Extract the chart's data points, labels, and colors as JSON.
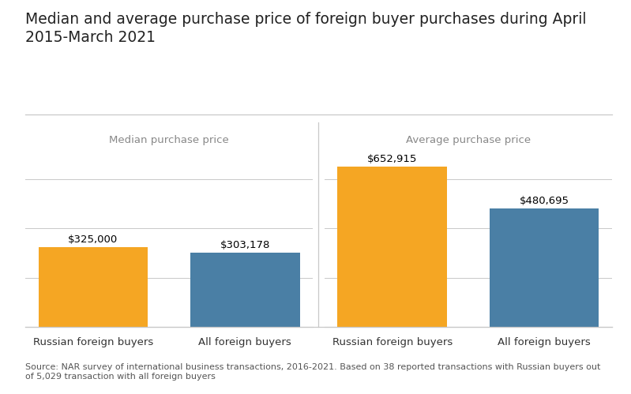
{
  "title": "Median and average purchase price of foreign buyer purchases during April\n2015-March 2021",
  "title_fontsize": 13.5,
  "subtitle_left": "Median purchase price",
  "subtitle_right": "Average purchase price",
  "subtitle_fontsize": 9.5,
  "categories": [
    "Russian foreign buyers",
    "All foreign buyers"
  ],
  "median_values": [
    325000,
    303178
  ],
  "average_values": [
    652915,
    480695
  ],
  "median_labels": [
    "$325,000",
    "$303,178"
  ],
  "average_labels": [
    "$652,915",
    "$480,695"
  ],
  "bar_colors": [
    "#F5A623",
    "#4A7FA5"
  ],
  "bar_width": 0.72,
  "source_text": "Source: NAR survey of international business transactions, 2016-2021. Based on 38 reported transactions with Russian buyers out\nof 5,029 transaction with all foreign buyers",
  "source_fontsize": 8,
  "background_color": "#ffffff",
  "divider_color": "#c8c8c8",
  "label_fontsize": 9.5,
  "category_fontsize": 9.5,
  "ylim": [
    0,
    720000
  ],
  "yticks": [
    0,
    200000,
    400000,
    600000
  ]
}
